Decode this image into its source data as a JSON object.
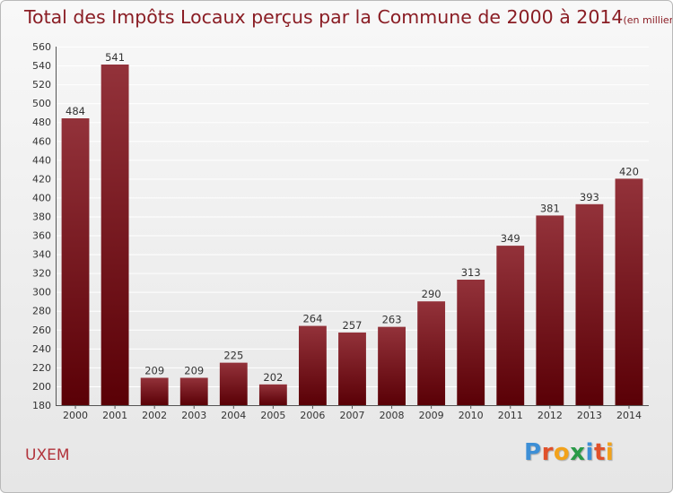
{
  "title": "Total des Impôts Locaux perçus par la Commune de 2000 à 2014",
  "unit_note": "(en milliers d'€)",
  "commune": "UXEM",
  "logo": {
    "letters": [
      "P",
      "r",
      "o",
      "x",
      "i",
      "t",
      "i"
    ],
    "colors": [
      "#3d8fd6",
      "#e0502a",
      "#f2a21b",
      "#2a9b48",
      "#3d8fd6",
      "#e0502a",
      "#f2a21b"
    ]
  },
  "chart_data": {
    "type": "bar",
    "categories": [
      "2000",
      "2001",
      "2002",
      "2003",
      "2004",
      "2005",
      "2006",
      "2007",
      "2008",
      "2009",
      "2010",
      "2011",
      "2012",
      "2013",
      "2014"
    ],
    "values": [
      484,
      541,
      209,
      209,
      225,
      202,
      264,
      257,
      263,
      290,
      313,
      349,
      381,
      393,
      420
    ],
    "ylim": [
      180,
      560
    ],
    "ytick_step": 20,
    "bar_color_top": "#93323a",
    "bar_color_bottom": "#5a0006",
    "grid": true
  }
}
